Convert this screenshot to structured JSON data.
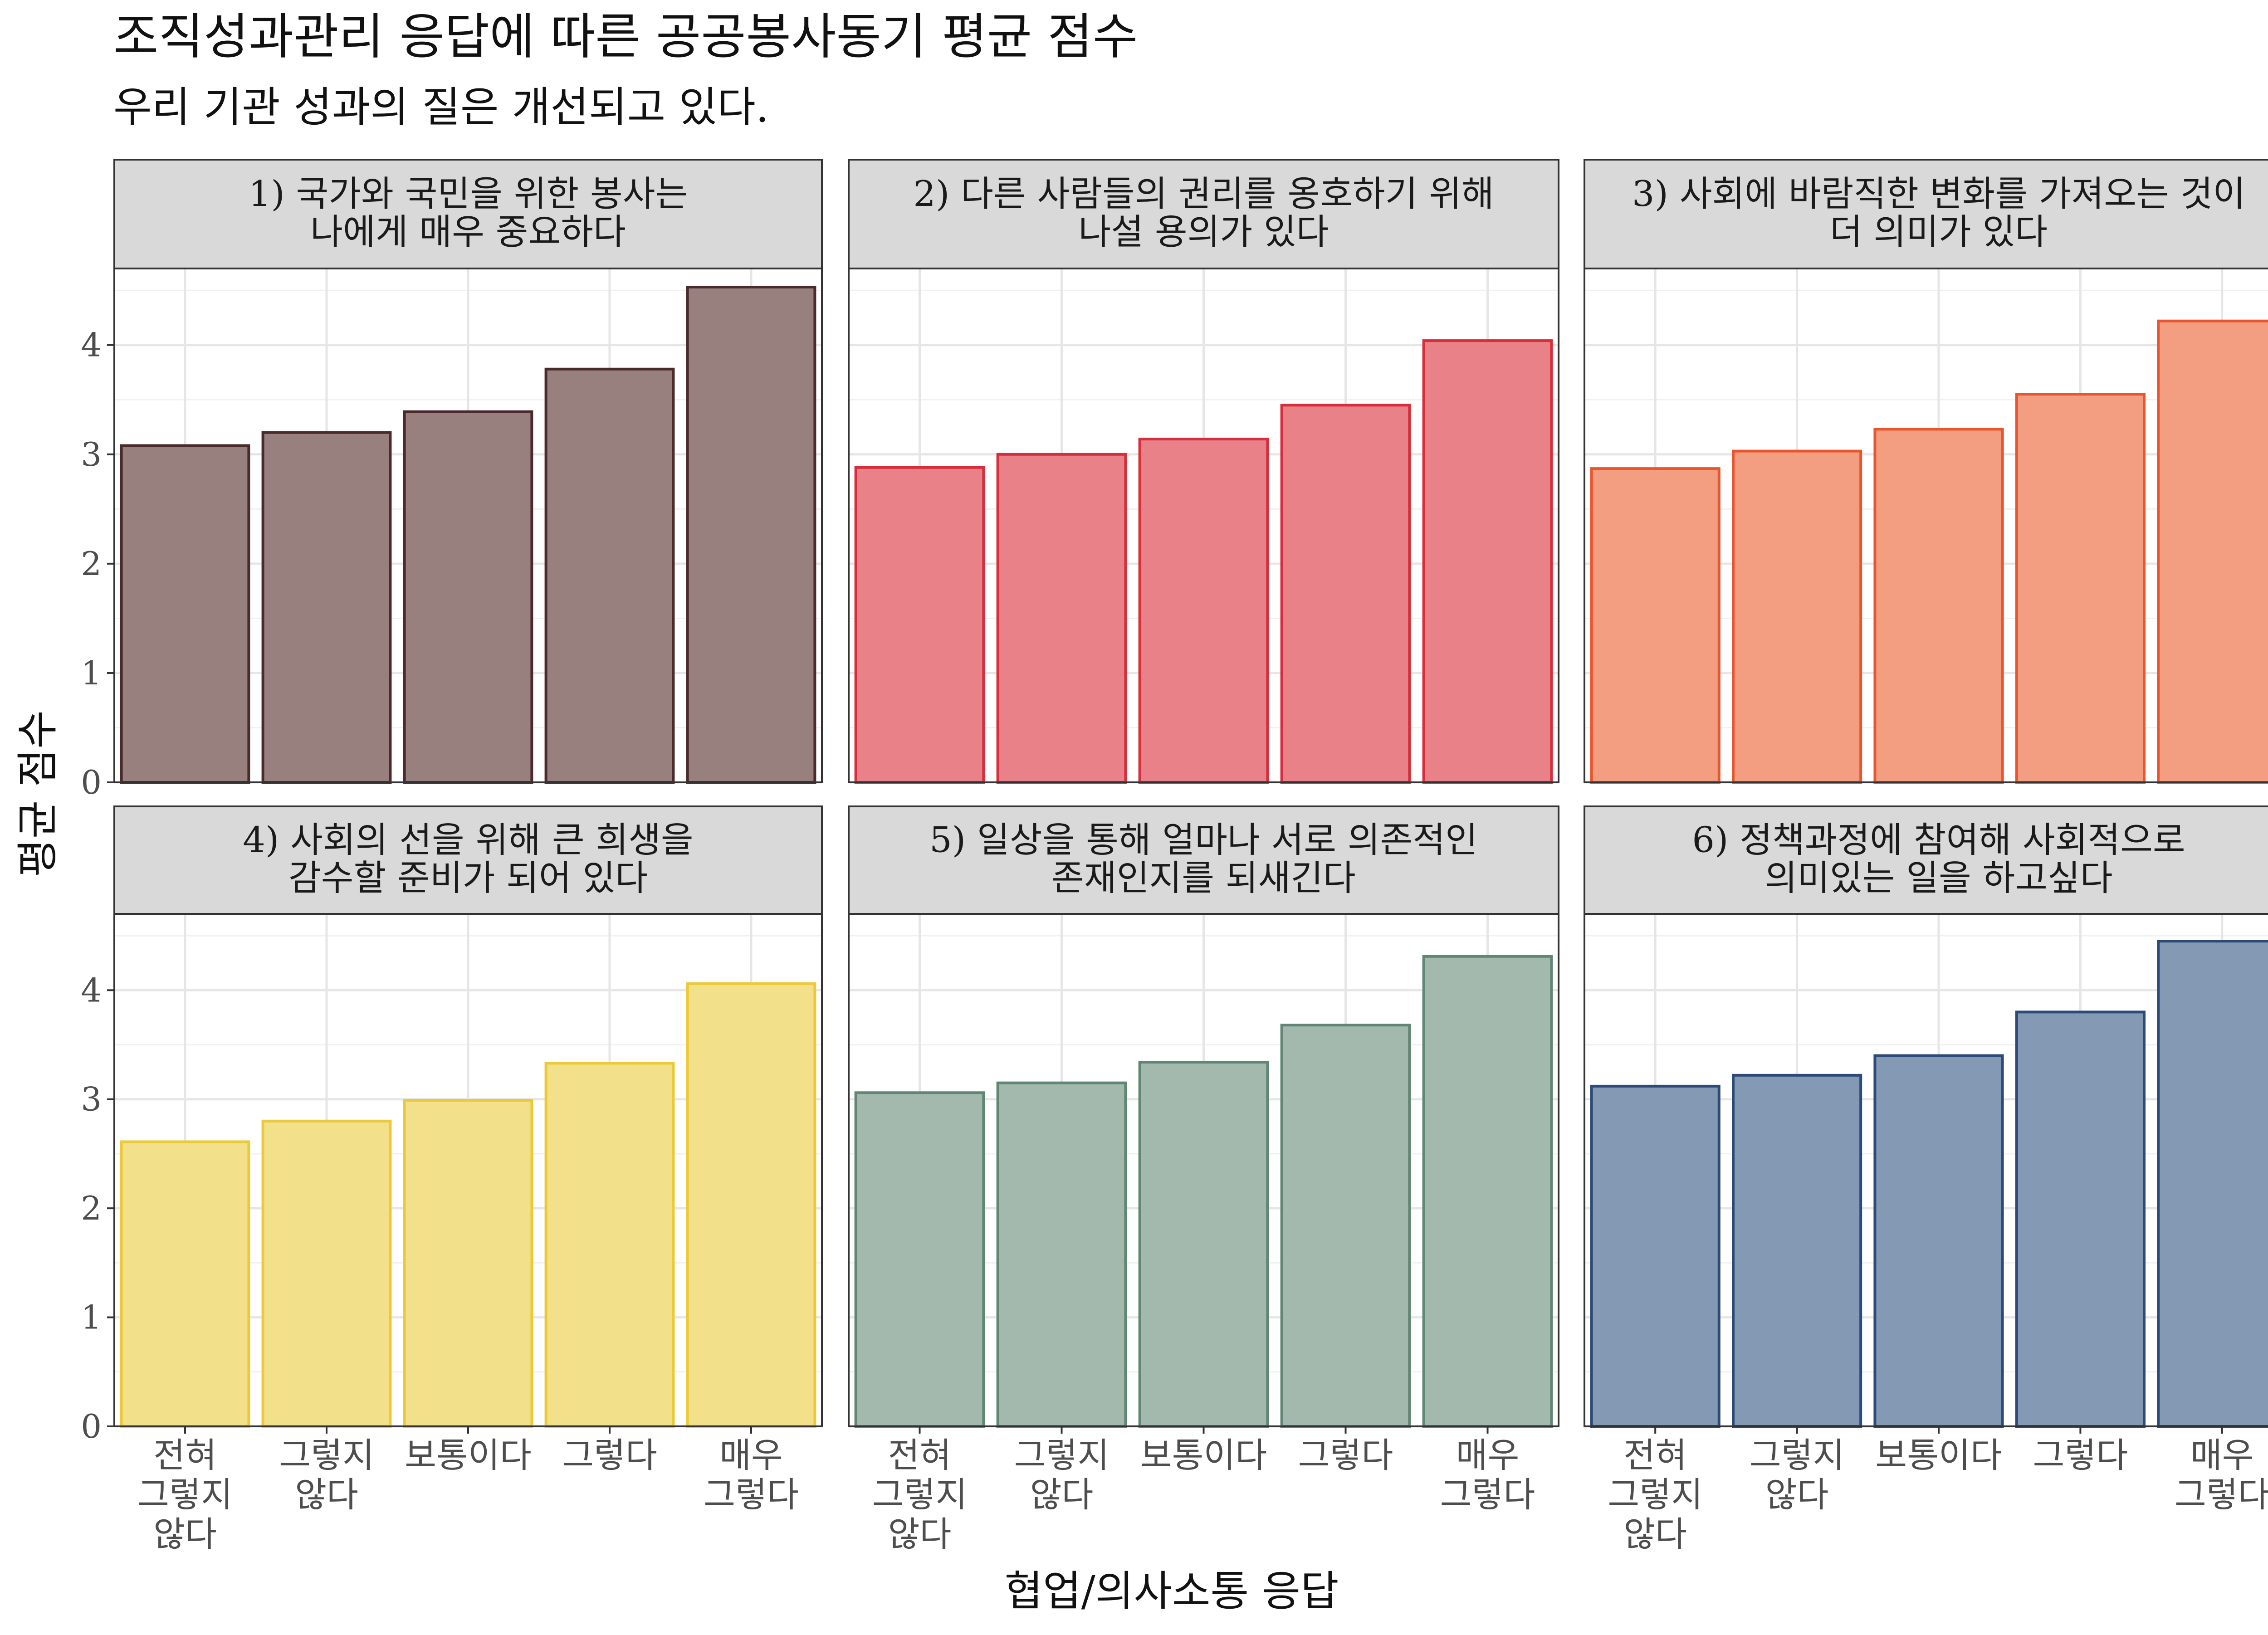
{
  "chart_data": {
    "type": "bar",
    "title": "조직성과관리 응답에 따른 공공봉사동기 평균 점수",
    "subtitle": "우리 기관 성과의 질은 개선되고 있다.",
    "xlabel": "협업/의사소통 응답",
    "ylabel": "평균 점수",
    "ylim": [
      0,
      4.7
    ],
    "y_ticks": [
      "0",
      "1",
      "2",
      "3",
      "4"
    ],
    "grid": true,
    "categories": [
      [
        "전혀",
        "그렇지",
        "않다"
      ],
      [
        "그렇지",
        "않다"
      ],
      [
        "보통이다"
      ],
      [
        "그렇다"
      ],
      [
        "매우",
        "그렇다"
      ]
    ],
    "panels": [
      {
        "label_lines": [
          "1) 국가와 국민을 위한 봉사는",
          "나에게 매우 중요하다"
        ],
        "fill": "#98807F",
        "stroke": "#4A2A2B",
        "values": [
          3.08,
          3.2,
          3.39,
          3.78,
          4.53
        ]
      },
      {
        "label_lines": [
          "2) 다른 사람들의 권리를 옹호하기 위해",
          "나설 용의가 있다"
        ],
        "fill": "#E88288",
        "stroke": "#D62E3B",
        "values": [
          2.88,
          3.0,
          3.14,
          3.45,
          4.04
        ]
      },
      {
        "label_lines": [
          "3) 사회에 바람직한 변화를 가져오는 것이",
          "더 의미가 있다"
        ],
        "fill": "#F39E80",
        "stroke": "#E9552E",
        "values": [
          2.87,
          3.03,
          3.23,
          3.55,
          4.22
        ]
      },
      {
        "label_lines": [
          "4) 사회의 선을 위해 큰 희생을",
          "감수할 준비가 되어 있다"
        ],
        "fill": "#F2E08B",
        "stroke": "#EBC93A",
        "values": [
          2.61,
          2.8,
          2.99,
          3.33,
          4.06
        ]
      },
      {
        "label_lines": [
          "5) 일상을 통해 얼마나 서로 의존적인",
          "존재인지를 되새긴다"
        ],
        "fill": "#A4B9AD",
        "stroke": "#5F8773",
        "values": [
          3.06,
          3.15,
          3.34,
          3.68,
          4.31
        ]
      },
      {
        "label_lines": [
          "6) 정책과정에 참여해 사회적으로",
          "의미있는 일을 하고싶다"
        ],
        "fill": "#8499B4",
        "stroke": "#2B4A78",
        "values": [
          3.12,
          3.22,
          3.4,
          3.8,
          4.45
        ]
      }
    ]
  }
}
